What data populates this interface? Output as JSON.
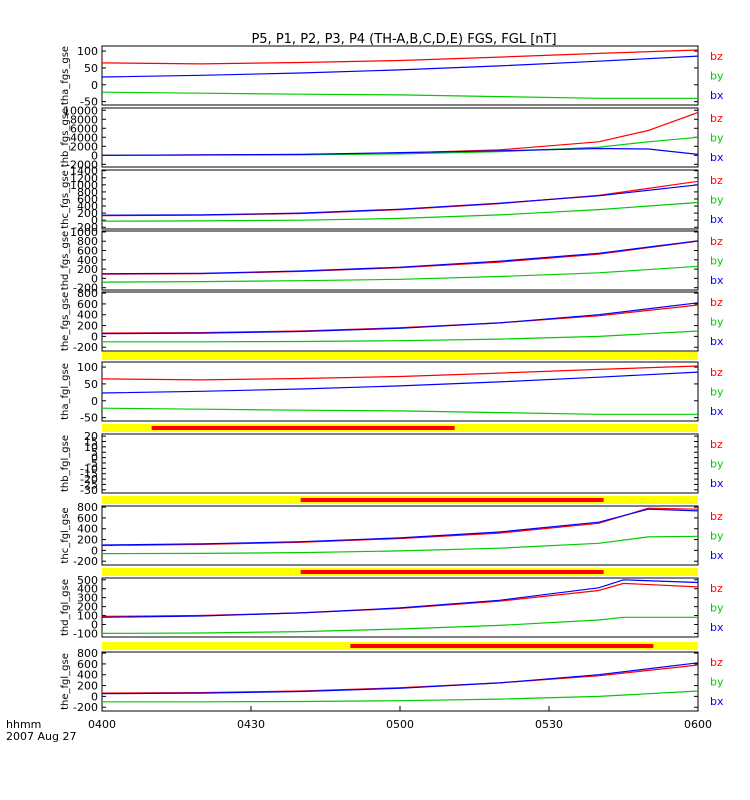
{
  "chart_data": {
    "type": "line",
    "title": "P5, P1, P2, P3, P4 (TH-A,B,C,D,E) FGS, FGL [nT]",
    "x_ticks": [
      "0400",
      "0430",
      "0500",
      "0530",
      "0600"
    ],
    "x_range": [
      0,
      120
    ],
    "xlabel_line1": "hhmm",
    "xlabel_line2": "2007 Aug 27",
    "colors": {
      "bz": "#ff0000",
      "by": "#00cc00",
      "bx": "#0000ff",
      "bar_yellow": "#ffff00",
      "bar_red": "#ff0000"
    },
    "panels": [
      {
        "ylabel": "tha_fgs_gse",
        "yticks": [
          "100",
          "50",
          "0",
          "-50"
        ],
        "ytick_vals": [
          100,
          50,
          0,
          -50
        ],
        "ylim": [
          -60,
          115
        ],
        "legend": [
          "bz",
          "by",
          "bx"
        ],
        "series": [
          {
            "name": "bz",
            "x": [
              0,
              20,
              40,
              60,
              80,
              100,
              120
            ],
            "values": [
              65,
              62,
              66,
              72,
              82,
              93,
              103
            ]
          },
          {
            "name": "bx",
            "x": [
              0,
              20,
              40,
              60,
              80,
              100,
              120
            ],
            "values": [
              23,
              28,
              35,
              44,
              56,
              70,
              85
            ]
          },
          {
            "name": "by",
            "x": [
              0,
              20,
              40,
              60,
              80,
              100,
              120
            ],
            "values": [
              -22,
              -25,
              -28,
              -30,
              -35,
              -40,
              -40
            ]
          }
        ]
      },
      {
        "ylabel": "thb_fgs_gse",
        "yticks": [
          "10000",
          "8000",
          "6000",
          "4000",
          "2000",
          "0",
          "-2000"
        ],
        "ytick_vals": [
          10000,
          8000,
          6000,
          4000,
          2000,
          0,
          -2000
        ],
        "ylim": [
          -2600,
          10500
        ],
        "legend": [
          "bz",
          "by",
          "bx"
        ],
        "series": [
          {
            "name": "bz",
            "x": [
              0,
              40,
              60,
              80,
              100,
              110,
              120
            ],
            "values": [
              0,
              150,
              500,
              1200,
              3000,
              5500,
              9500
            ]
          },
          {
            "name": "by",
            "x": [
              0,
              40,
              60,
              80,
              100,
              110,
              120
            ],
            "values": [
              0,
              100,
              300,
              800,
              1800,
              3000,
              4000
            ]
          },
          {
            "name": "bx",
            "x": [
              0,
              40,
              60,
              80,
              100,
              110,
              120
            ],
            "values": [
              0,
              200,
              600,
              1000,
              1500,
              1400,
              200
            ]
          }
        ]
      },
      {
        "ylabel": "thc_fgs_gse",
        "yticks": [
          "1400",
          "1200",
          "1000",
          "800",
          "600",
          "400",
          "200",
          "0",
          "-200"
        ],
        "ytick_vals": [
          1400,
          1200,
          1000,
          800,
          600,
          400,
          200,
          0,
          -200
        ],
        "ylim": [
          -250,
          1420
        ],
        "legend": [
          "bz",
          "by",
          "bx"
        ],
        "series": [
          {
            "name": "bz",
            "x": [
              0,
              20,
              40,
              60,
              80,
              100,
              120
            ],
            "values": [
              130,
              140,
              190,
              300,
              470,
              700,
              1100
            ]
          },
          {
            "name": "bx",
            "x": [
              0,
              20,
              40,
              60,
              80,
              100,
              120
            ],
            "values": [
              140,
              150,
              200,
              310,
              480,
              690,
              1000
            ]
          },
          {
            "name": "by",
            "x": [
              0,
              20,
              40,
              60,
              80,
              100,
              120
            ],
            "values": [
              -30,
              -20,
              0,
              50,
              150,
              300,
              500
            ]
          }
        ]
      },
      {
        "ylabel": "thd_fgs_gse",
        "yticks": [
          "1000",
          "800",
          "600",
          "400",
          "200",
          "0",
          "-200"
        ],
        "ytick_vals": [
          1000,
          800,
          600,
          400,
          200,
          0,
          -200
        ],
        "ylim": [
          -250,
          1020
        ],
        "legend": [
          "bz",
          "by",
          "bx"
        ],
        "series": [
          {
            "name": "bz",
            "x": [
              0,
              20,
              40,
              60,
              80,
              100,
              120
            ],
            "values": [
              90,
              100,
              150,
              230,
              350,
              520,
              800
            ]
          },
          {
            "name": "bx",
            "x": [
              0,
              20,
              40,
              60,
              80,
              100,
              120
            ],
            "values": [
              100,
              110,
              160,
              240,
              370,
              540,
              810
            ]
          },
          {
            "name": "by",
            "x": [
              0,
              20,
              40,
              60,
              80,
              100,
              120
            ],
            "values": [
              -80,
              -70,
              -50,
              -20,
              40,
              120,
              260
            ]
          }
        ]
      },
      {
        "ylabel": "the_fgs_gse",
        "yticks": [
          "800",
          "600",
          "400",
          "200",
          "0",
          "-200"
        ],
        "ytick_vals": [
          800,
          600,
          400,
          200,
          0,
          -200
        ],
        "ylim": [
          -270,
          820
        ],
        "legend": [
          "bz",
          "by",
          "bx"
        ],
        "series": [
          {
            "name": "bz",
            "x": [
              0,
              20,
              40,
              60,
              80,
              100,
              120
            ],
            "values": [
              60,
              70,
              100,
              160,
              250,
              380,
              580
            ]
          },
          {
            "name": "bx",
            "x": [
              0,
              20,
              40,
              60,
              80,
              100,
              120
            ],
            "values": [
              50,
              60,
              90,
              150,
              250,
              400,
              620
            ]
          },
          {
            "name": "by",
            "x": [
              0,
              20,
              40,
              60,
              80,
              100,
              120
            ],
            "values": [
              -100,
              -100,
              -95,
              -80,
              -50,
              0,
              100
            ]
          }
        ]
      },
      {
        "ylabel": "tha_fgl_gse",
        "yticks": [
          "100",
          "50",
          "0",
          "-50"
        ],
        "ytick_vals": [
          100,
          50,
          0,
          -50
        ],
        "ylim": [
          -60,
          115
        ],
        "legend": [
          "bz",
          "by",
          "bx"
        ],
        "series": [
          {
            "name": "bz",
            "x": [
              0,
              20,
              40,
              60,
              80,
              100,
              120
            ],
            "values": [
              65,
              62,
              66,
              72,
              82,
              93,
              103
            ]
          },
          {
            "name": "bx",
            "x": [
              0,
              20,
              40,
              60,
              80,
              100,
              120
            ],
            "values": [
              23,
              28,
              35,
              44,
              56,
              70,
              85
            ]
          },
          {
            "name": "by",
            "x": [
              0,
              20,
              40,
              60,
              80,
              100,
              120
            ],
            "values": [
              -22,
              -25,
              -28,
              -30,
              -35,
              -40,
              -40
            ]
          }
        ]
      },
      {
        "ylabel": "thb_fgl_gse",
        "yticks": [
          "20",
          "15",
          "10",
          "5",
          "0",
          "-5",
          "-10",
          "-15",
          "-20",
          "-25",
          "-30"
        ],
        "ytick_vals": [
          20,
          15,
          10,
          5,
          0,
          -5,
          -10,
          -15,
          -20,
          -25,
          -30
        ],
        "ylim": [
          -33,
          22
        ],
        "legend": [
          "bz",
          "by",
          "bx"
        ],
        "series": []
      },
      {
        "ylabel": "thc_fgl_gse",
        "yticks": [
          "800",
          "600",
          "400",
          "200",
          "0",
          "-200"
        ],
        "ytick_vals": [
          800,
          600,
          400,
          200,
          0,
          -200
        ],
        "ylim": [
          -270,
          820
        ],
        "legend": [
          "bz",
          "by",
          "bx"
        ],
        "series": [
          {
            "name": "bz",
            "x": [
              0,
              20,
              40,
              60,
              80,
              100,
              110,
              120
            ],
            "values": [
              90,
              110,
              150,
              220,
              320,
              500,
              780,
              760
            ]
          },
          {
            "name": "bx",
            "x": [
              0,
              20,
              40,
              60,
              80,
              100,
              110,
              120
            ],
            "values": [
              100,
              120,
              160,
              230,
              340,
              520,
              760,
              730
            ]
          },
          {
            "name": "by",
            "x": [
              0,
              20,
              40,
              60,
              80,
              100,
              110,
              120
            ],
            "values": [
              -60,
              -55,
              -40,
              -10,
              40,
              130,
              250,
              260
            ]
          }
        ]
      },
      {
        "ylabel": "thd_fgl_gse",
        "yticks": [
          "500",
          "400",
          "300",
          "200",
          "100",
          "0",
          "-100"
        ],
        "ytick_vals": [
          500,
          400,
          300,
          200,
          100,
          0,
          -100
        ],
        "ylim": [
          -140,
          520
        ],
        "legend": [
          "bz",
          "by",
          "bx"
        ],
        "series": [
          {
            "name": "bz",
            "x": [
              0,
              20,
              40,
              60,
              80,
              100,
              105,
              120
            ],
            "values": [
              90,
              100,
              130,
              180,
              260,
              380,
              460,
              420
            ]
          },
          {
            "name": "bx",
            "x": [
              0,
              20,
              40,
              60,
              80,
              100,
              105,
              120
            ],
            "values": [
              80,
              95,
              130,
              185,
              270,
              410,
              500,
              470
            ]
          },
          {
            "name": "by",
            "x": [
              0,
              20,
              40,
              60,
              80,
              100,
              105,
              120
            ],
            "values": [
              -100,
              -95,
              -80,
              -50,
              -10,
              50,
              80,
              80
            ]
          }
        ]
      },
      {
        "ylabel": "the_fgl_gse",
        "yticks": [
          "800",
          "600",
          "400",
          "200",
          "0",
          "-200"
        ],
        "ytick_vals": [
          800,
          600,
          400,
          200,
          0,
          -200
        ],
        "ylim": [
          -270,
          820
        ],
        "legend": [
          "bz",
          "by",
          "bx"
        ],
        "series": [
          {
            "name": "bz",
            "x": [
              0,
              20,
              40,
              60,
              80,
              100,
              120
            ],
            "values": [
              60,
              70,
              100,
              160,
              250,
              380,
              580
            ]
          },
          {
            "name": "bx",
            "x": [
              0,
              20,
              40,
              60,
              80,
              100,
              120
            ],
            "values": [
              50,
              60,
              90,
              150,
              250,
              400,
              620
            ]
          },
          {
            "name": "by",
            "x": [
              0,
              20,
              40,
              60,
              80,
              100,
              120
            ],
            "values": [
              -100,
              -100,
              -95,
              -80,
              -50,
              0,
              100
            ]
          }
        ]
      }
    ],
    "status_bars": [
      {
        "red_start": null,
        "red_end": null
      },
      {
        "red_start": 10,
        "red_end": 71
      },
      {
        "red_start": 40,
        "red_end": 101
      },
      {
        "red_start": 40,
        "red_end": 101
      },
      {
        "red_start": 50,
        "red_end": 111
      }
    ]
  }
}
